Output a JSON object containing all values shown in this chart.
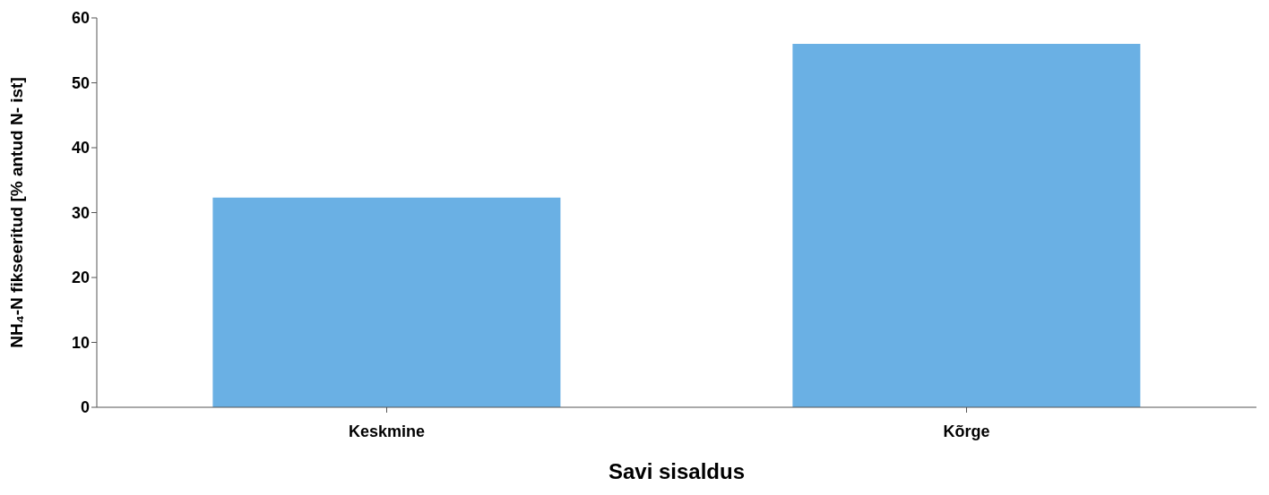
{
  "chart_data": {
    "type": "bar",
    "xlabel": "Savi sisaldus",
    "ylabel": "NH₄-N fikseeritud [% antud N- ist]",
    "categories": [
      "Keskmine",
      "Kõrge"
    ],
    "values": [
      32.3,
      56
    ],
    "color": "#6ab0e4",
    "ylim": [
      0,
      60
    ],
    "yticks": [
      0,
      10,
      20,
      30,
      40,
      50,
      60
    ],
    "grid": false
  }
}
